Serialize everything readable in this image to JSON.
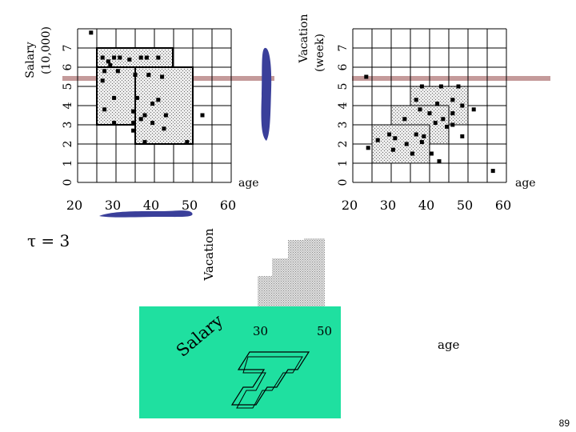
{
  "left_plot": {
    "y_title_line1": "Salary",
    "y_title_line2": "(10,000)",
    "x_label": "age",
    "x_ticks": [
      "20",
      "30",
      "40",
      "50",
      "60"
    ],
    "y_ticks": [
      "0",
      "1",
      "2",
      "3",
      "4",
      "5",
      "6",
      "7"
    ],
    "points": [
      {
        "x": 23.5,
        "y": 7.8
      },
      {
        "x": 26.5,
        "y": 6.5
      },
      {
        "x": 28,
        "y": 6.3
      },
      {
        "x": 29.5,
        "y": 6.5
      },
      {
        "x": 31,
        "y": 6.5
      },
      {
        "x": 33.5,
        "y": 6.4
      },
      {
        "x": 36.5,
        "y": 6.5
      },
      {
        "x": 38,
        "y": 6.5
      },
      {
        "x": 41,
        "y": 6.5
      },
      {
        "x": 28.5,
        "y": 6.1
      },
      {
        "x": 27,
        "y": 5.8
      },
      {
        "x": 30.5,
        "y": 5.8
      },
      {
        "x": 35,
        "y": 5.6
      },
      {
        "x": 26.5,
        "y": 5.3
      },
      {
        "x": 38.5,
        "y": 5.6
      },
      {
        "x": 42,
        "y": 5.5
      },
      {
        "x": 29.5,
        "y": 4.4
      },
      {
        "x": 35.5,
        "y": 4.4
      },
      {
        "x": 39.5,
        "y": 4.1
      },
      {
        "x": 27,
        "y": 3.8
      },
      {
        "x": 41,
        "y": 4.3
      },
      {
        "x": 34.5,
        "y": 3.7
      },
      {
        "x": 37.5,
        "y": 3.5
      },
      {
        "x": 43,
        "y": 3.5
      },
      {
        "x": 36.5,
        "y": 3.3
      },
      {
        "x": 29.5,
        "y": 3.1
      },
      {
        "x": 34.5,
        "y": 3.1
      },
      {
        "x": 39.5,
        "y": 3.1
      },
      {
        "x": 34.5,
        "y": 2.7
      },
      {
        "x": 42.5,
        "y": 2.8
      },
      {
        "x": 52.5,
        "y": 3.5
      },
      {
        "x": 37.5,
        "y": 2.1
      },
      {
        "x": 48.5,
        "y": 2.1
      }
    ]
  },
  "right_plot": {
    "y_title_line1": "Vacation",
    "y_title_line2": "(week)",
    "x_label": "age",
    "x_ticks": [
      "20",
      "30",
      "40",
      "50",
      "60"
    ],
    "y_ticks": [
      "0",
      "1",
      "2",
      "3",
      "4",
      "5",
      "6",
      "7"
    ],
    "points": [
      {
        "x": 23.5,
        "y": 5.5
      },
      {
        "x": 56.5,
        "y": 0.6
      },
      {
        "x": 38,
        "y": 5.0
      },
      {
        "x": 43,
        "y": 5.0
      },
      {
        "x": 47.5,
        "y": 5.0
      },
      {
        "x": 36.5,
        "y": 4.3
      },
      {
        "x": 42,
        "y": 4.1
      },
      {
        "x": 46,
        "y": 4.3
      },
      {
        "x": 48.5,
        "y": 4.0
      },
      {
        "x": 37.5,
        "y": 3.8
      },
      {
        "x": 40,
        "y": 3.6
      },
      {
        "x": 46,
        "y": 3.6
      },
      {
        "x": 51.5,
        "y": 3.8
      },
      {
        "x": 33.5,
        "y": 3.3
      },
      {
        "x": 43.5,
        "y": 3.3
      },
      {
        "x": 46,
        "y": 3.0
      },
      {
        "x": 41.5,
        "y": 3.1
      },
      {
        "x": 44.5,
        "y": 2.9
      },
      {
        "x": 29.5,
        "y": 2.5
      },
      {
        "x": 36.5,
        "y": 2.5
      },
      {
        "x": 38.5,
        "y": 2.4
      },
      {
        "x": 48.5,
        "y": 2.4
      },
      {
        "x": 26.5,
        "y": 2.2
      },
      {
        "x": 31,
        "y": 2.3
      },
      {
        "x": 38,
        "y": 2.1
      },
      {
        "x": 34,
        "y": 2.0
      },
      {
        "x": 35.5,
        "y": 1.5
      },
      {
        "x": 24,
        "y": 1.8
      },
      {
        "x": 30.5,
        "y": 1.7
      },
      {
        "x": 40.5,
        "y": 1.5
      },
      {
        "x": 42.5,
        "y": 1.1
      }
    ]
  },
  "tau_label": "τ = 3",
  "bottom_vacation_label": "Vacation",
  "bottom_salary_label": "Salary",
  "bottom_tick_30": "30",
  "bottom_tick_50": "50",
  "bottom_age_label": "age",
  "page_number": "89",
  "colors": {
    "density_blue": "#3a3f9a",
    "bar_pink": "#c49a9a",
    "floor_green": "#1fe0a0",
    "box_fill": "#d2d2d2",
    "grid": "#000000"
  }
}
